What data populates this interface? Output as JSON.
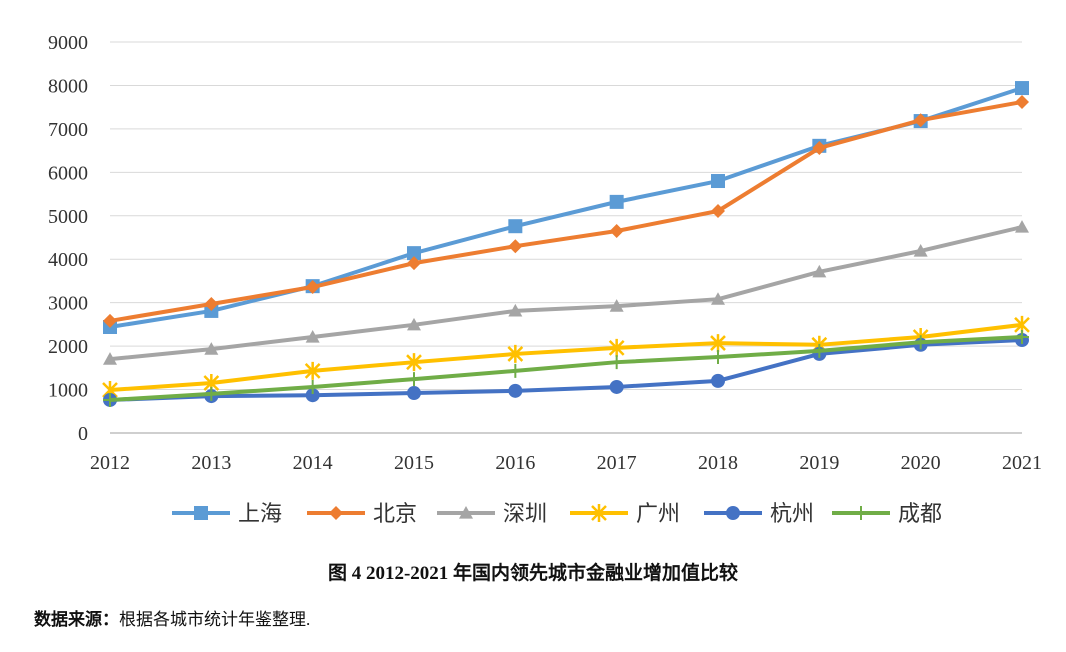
{
  "chart_data": {
    "type": "line",
    "x": [
      "2012",
      "2013",
      "2014",
      "2015",
      "2016",
      "2017",
      "2018",
      "2019",
      "2020",
      "2021"
    ],
    "ylim": [
      0,
      9000
    ],
    "yticks": [
      0,
      1000,
      2000,
      3000,
      4000,
      5000,
      6000,
      7000,
      8000,
      9000
    ],
    "grid": true,
    "legend_position": "bottom",
    "series": [
      {
        "name": "上海",
        "color": "#5b9bd5",
        "marker": "square",
        "values": [
          2440,
          2810,
          3380,
          4140,
          4760,
          5320,
          5800,
          6610,
          7180,
          7940
        ]
      },
      {
        "name": "北京",
        "color": "#ed7d31",
        "marker": "diamond",
        "values": [
          2580,
          2970,
          3360,
          3910,
          4300,
          4650,
          5110,
          6560,
          7200,
          7620
        ]
      },
      {
        "name": "深圳",
        "color": "#a5a5a5",
        "marker": "triangle",
        "values": [
          1700,
          1930,
          2210,
          2490,
          2810,
          2920,
          3080,
          3710,
          4190,
          4740
        ]
      },
      {
        "name": "广州",
        "color": "#ffc000",
        "marker": "star",
        "values": [
          990,
          1150,
          1430,
          1630,
          1820,
          1960,
          2070,
          2030,
          2210,
          2490
        ]
      },
      {
        "name": "杭州",
        "color": "#4472c4",
        "marker": "circle",
        "values": [
          760,
          850,
          870,
          920,
          970,
          1060,
          1200,
          1820,
          2030,
          2140
        ]
      },
      {
        "name": "成都",
        "color": "#70ad47",
        "marker": "plus",
        "values": [
          760,
          900,
          1060,
          1240,
          1430,
          1630,
          1750,
          1890,
          2090,
          2210
        ]
      }
    ]
  },
  "caption": "图 4 2012-2021 年国内领先城市金融业增加值比较",
  "source_label": "数据来源：",
  "source_text": "根据各城市统计年鉴整理."
}
